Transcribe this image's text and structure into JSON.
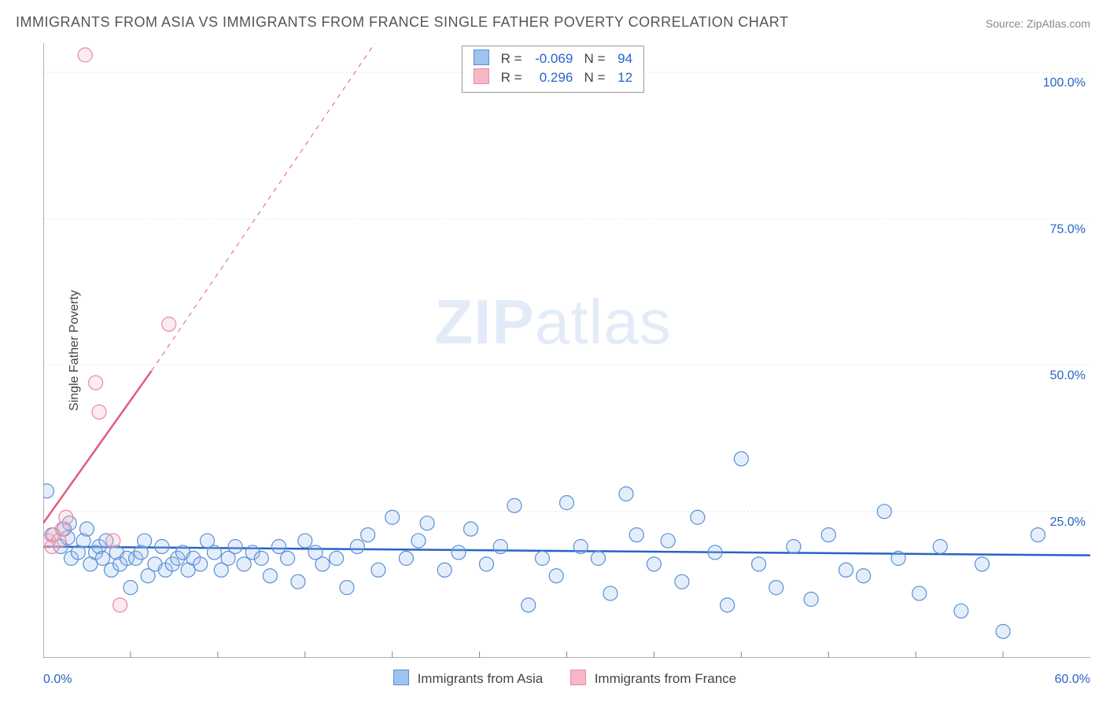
{
  "title": "IMMIGRANTS FROM ASIA VS IMMIGRANTS FROM FRANCE SINGLE FATHER POVERTY CORRELATION CHART",
  "source_label": "Source: ",
  "source_value": "ZipAtlas.com",
  "watermark": "ZIPatlas",
  "ylabel": "Single Father Poverty",
  "chart": {
    "type": "scatter",
    "background_color": "#ffffff",
    "grid_color": "#e4e4e4",
    "axis_color": "#666666",
    "tick_color": "#888888",
    "tick_len": 8,
    "xlim": [
      0,
      60
    ],
    "ylim": [
      0,
      105
    ],
    "x_ticks_minor_step": 5,
    "y_ticks": [
      25,
      50,
      75,
      100
    ],
    "y_tick_labels": [
      "25.0%",
      "50.0%",
      "75.0%",
      "100.0%"
    ],
    "y_tick_label_color": "#2862c7",
    "y_tick_label_fontsize": 16,
    "xmin_label": "0.0%",
    "xmax_label": "60.0%",
    "marker_radius": 9,
    "marker_stroke_width": 1.2,
    "marker_fill_opacity": 0.28,
    "series": [
      {
        "id": "asia",
        "label": "Immigrants from Asia",
        "color_stroke": "#5a8fd6",
        "color_fill": "#9ec3ef",
        "R": "-0.069",
        "N": "94",
        "trend": {
          "x1": 0,
          "y1": 19.0,
          "x2": 60,
          "y2": 17.5,
          "color": "#2862c7",
          "width": 2.5,
          "dash": ""
        },
        "points": [
          [
            0.2,
            28.5
          ],
          [
            0.5,
            21
          ],
          [
            1.0,
            19
          ],
          [
            1.2,
            22
          ],
          [
            1.4,
            20.5
          ],
          [
            1.5,
            23
          ],
          [
            1.6,
            17
          ],
          [
            2.0,
            18
          ],
          [
            2.3,
            20
          ],
          [
            2.5,
            22
          ],
          [
            2.7,
            16
          ],
          [
            3.0,
            18
          ],
          [
            3.2,
            19
          ],
          [
            3.4,
            17
          ],
          [
            3.6,
            20
          ],
          [
            3.9,
            15
          ],
          [
            4.2,
            18
          ],
          [
            4.4,
            16
          ],
          [
            4.8,
            17
          ],
          [
            5.0,
            12
          ],
          [
            5.3,
            17
          ],
          [
            5.6,
            18
          ],
          [
            5.8,
            20
          ],
          [
            6.0,
            14
          ],
          [
            6.4,
            16
          ],
          [
            6.8,
            19
          ],
          [
            7.0,
            15
          ],
          [
            7.4,
            16
          ],
          [
            7.7,
            17
          ],
          [
            8.0,
            18
          ],
          [
            8.3,
            15
          ],
          [
            8.6,
            17
          ],
          [
            9.0,
            16
          ],
          [
            9.4,
            20
          ],
          [
            9.8,
            18
          ],
          [
            10.2,
            15
          ],
          [
            10.6,
            17
          ],
          [
            11.0,
            19
          ],
          [
            11.5,
            16
          ],
          [
            12.0,
            18
          ],
          [
            12.5,
            17
          ],
          [
            13.0,
            14
          ],
          [
            13.5,
            19
          ],
          [
            14.0,
            17
          ],
          [
            14.6,
            13
          ],
          [
            15.0,
            20
          ],
          [
            15.6,
            18
          ],
          [
            16.0,
            16
          ],
          [
            16.8,
            17
          ],
          [
            17.4,
            12
          ],
          [
            18.0,
            19
          ],
          [
            18.6,
            21
          ],
          [
            19.2,
            15
          ],
          [
            20.0,
            24
          ],
          [
            20.8,
            17
          ],
          [
            21.5,
            20
          ],
          [
            22.0,
            23
          ],
          [
            23.0,
            15
          ],
          [
            23.8,
            18
          ],
          [
            24.5,
            22
          ],
          [
            25.4,
            16
          ],
          [
            26.2,
            19
          ],
          [
            27.0,
            26
          ],
          [
            27.8,
            9
          ],
          [
            28.6,
            17
          ],
          [
            29.4,
            14
          ],
          [
            30.0,
            26.5
          ],
          [
            30.8,
            19
          ],
          [
            31.8,
            17
          ],
          [
            32.5,
            11
          ],
          [
            33.4,
            28
          ],
          [
            34.0,
            21
          ],
          [
            35.0,
            16
          ],
          [
            35.8,
            20
          ],
          [
            36.6,
            13
          ],
          [
            37.5,
            24
          ],
          [
            38.5,
            18
          ],
          [
            39.2,
            9
          ],
          [
            40.0,
            34
          ],
          [
            41.0,
            16
          ],
          [
            42.0,
            12
          ],
          [
            43.0,
            19
          ],
          [
            44.0,
            10
          ],
          [
            45.0,
            21
          ],
          [
            46.0,
            15
          ],
          [
            47.0,
            14
          ],
          [
            48.2,
            25
          ],
          [
            49.0,
            17
          ],
          [
            50.2,
            11
          ],
          [
            51.4,
            19
          ],
          [
            52.6,
            8
          ],
          [
            53.8,
            16
          ],
          [
            55.0,
            4.5
          ],
          [
            57.0,
            21
          ]
        ]
      },
      {
        "id": "france",
        "label": "Immigrants from France",
        "color_stroke": "#e88aa3",
        "color_fill": "#f6b8c8",
        "R": "0.296",
        "N": "12",
        "trend": {
          "x1": 0,
          "y1": 23,
          "x2": 6.2,
          "y2": 49,
          "color": "#e05a86",
          "width": 2.5,
          "dash": "",
          "ext_x2": 19,
          "ext_y2": 105,
          "ext_dash": "6 6",
          "ext_width": 1
        },
        "points": [
          [
            0.3,
            20
          ],
          [
            0.5,
            19
          ],
          [
            0.6,
            21
          ],
          [
            0.9,
            20
          ],
          [
            1.1,
            22
          ],
          [
            1.3,
            24
          ],
          [
            2.4,
            103
          ],
          [
            3.0,
            47
          ],
          [
            3.2,
            42
          ],
          [
            4.0,
            20
          ],
          [
            4.4,
            9
          ],
          [
            7.2,
            57
          ]
        ]
      }
    ],
    "bottom_legend": [
      {
        "label": "Immigrants from Asia",
        "fill": "#9ec3ef",
        "stroke": "#5a8fd6"
      },
      {
        "label": "Immigrants from France",
        "fill": "#f6b8c8",
        "stroke": "#e88aa3"
      }
    ],
    "stats_box": {
      "r_width": 60,
      "n_width": 30,
      "rows": [
        {
          "fill": "#9ec3ef",
          "stroke": "#5a8fd6",
          "R": "-0.069",
          "N": "94"
        },
        {
          "fill": "#f6b8c8",
          "stroke": "#e88aa3",
          "R": "0.296",
          "N": "12"
        }
      ]
    }
  }
}
